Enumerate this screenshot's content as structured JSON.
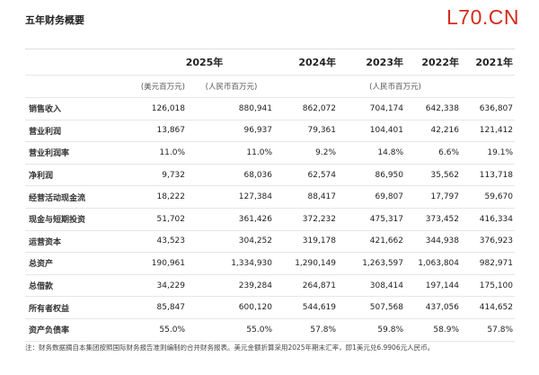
{
  "header": {
    "title": "五年财务概要",
    "watermark": "L70.CN"
  },
  "table": {
    "years": [
      "2025年",
      "2024年",
      "2023年",
      "2022年",
      "2021年"
    ],
    "units": [
      "(美元百万元)",
      "(人民币百万元)",
      "(人民币百万元)"
    ],
    "rows": [
      [
        "销售收入",
        "126,018",
        "880,941",
        "862,072",
        "704,174",
        "642,338",
        "636,807"
      ],
      [
        "营业利润",
        "13,867",
        "96,937",
        "79,361",
        "104,401",
        "42,216",
        "121,412"
      ],
      [
        "营业利润率",
        "11.0%",
        "11.0%",
        "9.2%",
        "14.8%",
        "6.6%",
        "19.1%"
      ],
      [
        "净利润",
        "9,732",
        "68,036",
        "62,574",
        "86,950",
        "35,562",
        "113,718"
      ],
      [
        "经营活动现金流",
        "18,222",
        "127,384",
        "88,417",
        "69,807",
        "17,797",
        "59,670"
      ],
      [
        "现金与短期投资",
        "51,702",
        "361,426",
        "372,232",
        "475,317",
        "373,452",
        "416,334"
      ],
      [
        "运营资本",
        "43,523",
        "304,252",
        "319,178",
        "421,662",
        "344,938",
        "376,923"
      ],
      [
        "总资产",
        "190,961",
        "1,334,930",
        "1,290,149",
        "1,263,597",
        "1,063,804",
        "982,971"
      ],
      [
        "总借款",
        "34,229",
        "239,284",
        "264,871",
        "308,414",
        "197,144",
        "175,100"
      ],
      [
        "所有者权益",
        "85,847",
        "600,120",
        "544,619",
        "507,568",
        "437,056",
        "414,652"
      ],
      [
        "资产负债率",
        "55.0%",
        "55.0%",
        "57.8%",
        "59.8%",
        "58.9%",
        "57.8%"
      ]
    ]
  },
  "note": "注：财务数据摘自本集团按照国际财务报告准则编制的合并财务报表。美元金额折算采用2025年期末汇率，即1美元兑6.9906元人民币。"
}
